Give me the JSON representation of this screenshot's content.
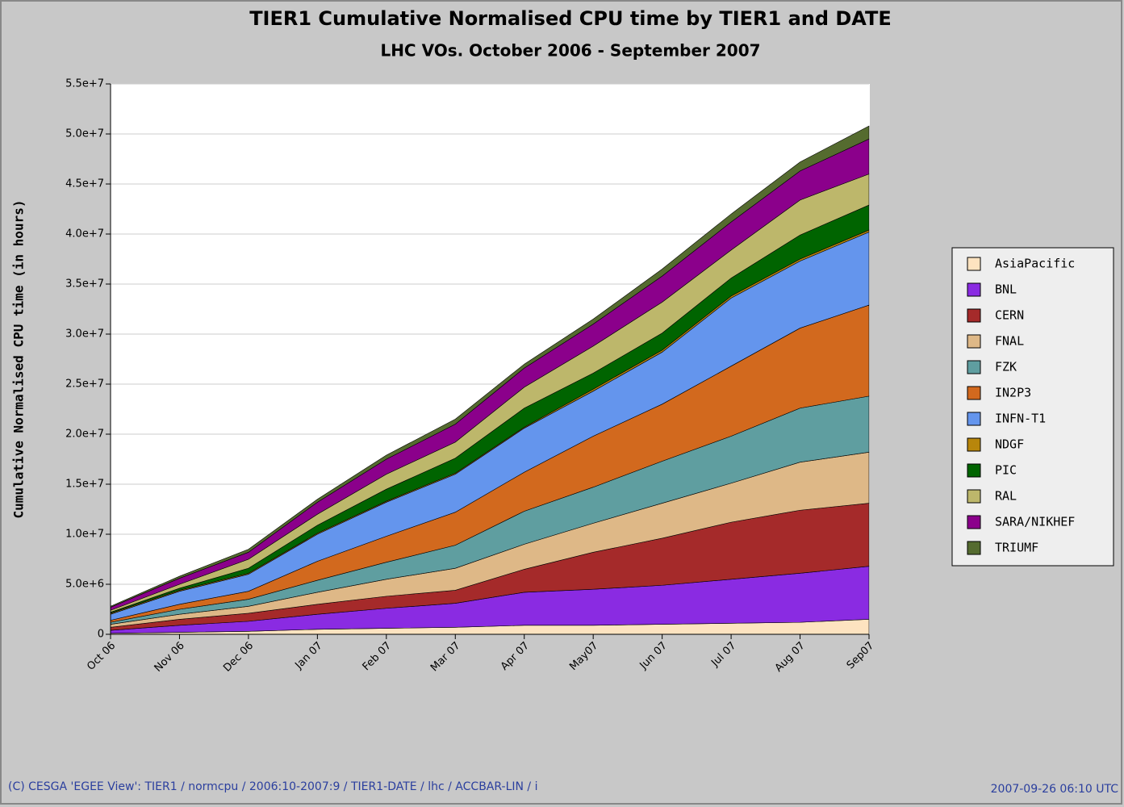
{
  "chart_data": {
    "type": "stacked_area",
    "title": "TIER1 Cumulative Normalised CPU time by TIER1 and DATE",
    "subtitle": "LHC VOs. October 2006 - September 2007",
    "y_label": "Cumulative Normalised CPU time (in hours)",
    "categories": [
      "Oct 06",
      "Nov 06",
      "Dec 06",
      "Jan 07",
      "Feb 07",
      "Mar 07",
      "Apr 07",
      "May07",
      "Jun 07",
      "Jul 07",
      "Aug 07",
      "Sep07"
    ],
    "ylim": [
      0,
      55000000.0
    ],
    "yticks": [
      0,
      {
        "value": 5000000.0,
        "label": "5.0e+6"
      },
      {
        "value": 10000000.0,
        "label": "1.0e+7"
      },
      {
        "value": 15000000.0,
        "label": "1.5e+7"
      },
      {
        "value": 20000000.0,
        "label": "2.0e+7"
      },
      {
        "value": 25000000.0,
        "label": "2.5e+7"
      },
      {
        "value": 30000000.0,
        "label": "3.0e+7"
      },
      {
        "value": 35000000.0,
        "label": "3.5e+7"
      },
      {
        "value": 40000000.0,
        "label": "4.0e+7"
      },
      {
        "value": 45000000.0,
        "label": "4.5e+7"
      },
      {
        "value": 50000000.0,
        "label": "5.0e+7"
      },
      {
        "value": 55000000.0,
        "label": "5.5e+7"
      }
    ],
    "grid": true,
    "legend": "right",
    "series": [
      {
        "name": "AsiaPacific",
        "color": "#fde3c0",
        "values": [
          100000.0,
          200000.0,
          300000.0,
          500000.0,
          600000.0,
          700000.0,
          900000.0,
          900000.0,
          1000000.0,
          1100000.0,
          1200000.0,
          1500000.0
        ]
      },
      {
        "name": "BNL",
        "color": "#8a2be2",
        "values": [
          300000.0,
          700000.0,
          1000000.0,
          1500000.0,
          2000000.0,
          2400000.0,
          3300000.0,
          3600000.0,
          3900000.0,
          4400000.0,
          4900000.0,
          5300000.0
        ]
      },
      {
        "name": "CERN",
        "color": "#a52a2a",
        "values": [
          300000.0,
          600000.0,
          800000.0,
          1000000.0,
          1200000.0,
          1300000.0,
          2300000.0,
          3700000.0,
          4700000.0,
          5700000.0,
          6300000.0,
          6300000.0
        ]
      },
      {
        "name": "FNAL",
        "color": "#deb887",
        "values": [
          300000.0,
          500000.0,
          700000.0,
          1200000.0,
          1700000.0,
          2200000.0,
          2500000.0,
          2900000.0,
          3500000.0,
          3900000.0,
          4800000.0,
          5100000.0
        ]
      },
      {
        "name": "FZK",
        "color": "#5f9ea0",
        "values": [
          200000.0,
          500000.0,
          700000.0,
          1200000.0,
          1700000.0,
          2300000.0,
          3300000.0,
          3600000.0,
          4200000.0,
          4700000.0,
          5400000.0,
          5600000.0
        ]
      },
      {
        "name": "IN2P3",
        "color": "#d2691e",
        "values": [
          200000.0,
          500000.0,
          800000.0,
          1900000.0,
          2600000.0,
          3300000.0,
          3900000.0,
          5100000.0,
          5700000.0,
          7000000.0,
          8000000.0,
          9100000.0
        ]
      },
      {
        "name": "INFN-T1",
        "color": "#6495ed",
        "values": [
          600000.0,
          1300000.0,
          1700000.0,
          2700000.0,
          3400000.0,
          3800000.0,
          4400000.0,
          4500000.0,
          5200000.0,
          6800000.0,
          6700000.0,
          7300000.0
        ]
      },
      {
        "name": "NDGF",
        "color": "#b8860b",
        "values": [
          100000.0,
          100000.0,
          100000.0,
          100000.0,
          100000.0,
          100000.0,
          100000.0,
          200000.0,
          200000.0,
          200000.0,
          200000.0,
          200000.0
        ]
      },
      {
        "name": "PIC",
        "color": "#006400",
        "values": [
          100000.0,
          200000.0,
          500000.0,
          800000.0,
          1200000.0,
          1500000.0,
          1900000.0,
          1600000.0,
          1700000.0,
          1800000.0,
          2400000.0,
          2500000.0
        ]
      },
      {
        "name": "RAL",
        "color": "#bdb76b",
        "values": [
          200000.0,
          400000.0,
          900000.0,
          1100000.0,
          1500000.0,
          1600000.0,
          2100000.0,
          2700000.0,
          3100000.0,
          2800000.0,
          3500000.0,
          3100000.0
        ]
      },
      {
        "name": "SARA/NIKHEF",
        "color": "#8b008b",
        "values": [
          300000.0,
          600000.0,
          700000.0,
          1200000.0,
          1500000.0,
          1800000.0,
          1900000.0,
          2200000.0,
          2600000.0,
          2800000.0,
          2900000.0,
          3500000.0
        ]
      },
      {
        "name": "TRIUMF",
        "color": "#556b2f",
        "values": [
          100000.0,
          200000.0,
          300000.0,
          300000.0,
          400000.0,
          500000.0,
          400000.0,
          500000.0,
          700000.0,
          800000.0,
          900000.0,
          1300000.0
        ]
      }
    ],
    "footer_left": "(C) CESGA 'EGEE View': TIER1 / normcpu / 2006:10-2007:9 / TIER1-DATE / lhc / ACCBAR-LIN / i",
    "footer_right": "2007-09-26 06:10 UTC"
  }
}
